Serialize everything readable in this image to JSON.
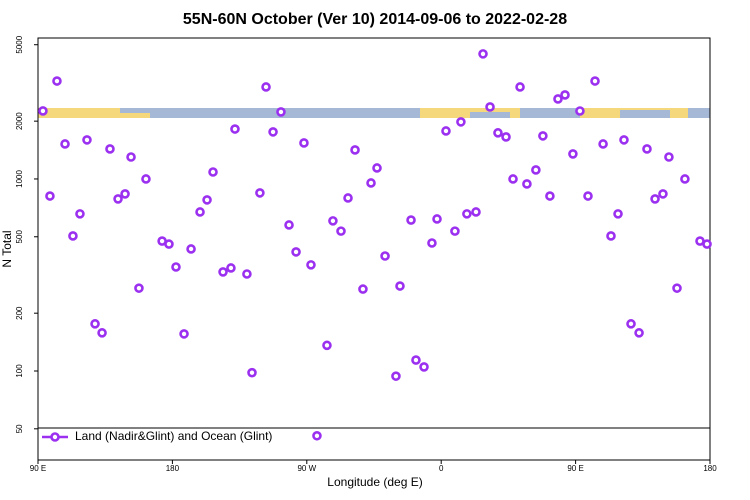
{
  "chart_data": {
    "type": "scatter",
    "title": "55N-60N October (Ver 10)   2014-09-06 to 2022-02-28",
    "xlabel": "Longitude (deg E)",
    "ylabel": "N Total",
    "log_y": true,
    "xlim": [
      90,
      540
    ],
    "ylim": [
      34.4,
      5420
    ],
    "xticks": [
      {
        "value": 90,
        "label": "90 E"
      },
      180,
      {
        "value": 270,
        "label": "90 W"
      },
      {
        "value": 360,
        "label": "0"
      },
      {
        "value": 450,
        "label": "90 E"
      },
      {
        "value": 540,
        "label": "180"
      }
    ],
    "yticks": [
      50,
      100,
      200,
      500,
      1000,
      2000,
      5000
    ],
    "legend": "lower left",
    "series": [
      {
        "name": "Land (Nadir&Glint) and Ocean (Glint)",
        "color": "#9b30f0",
        "x": [
          93.3,
          98.0,
          102.7,
          108.1,
          113.4,
          118.1,
          122.8,
          128.2,
          132.9,
          138.2,
          143.6,
          148.3,
          152.3,
          157.6,
          162.3,
          173.1,
          177.7,
          182.4,
          187.8,
          192.5,
          198.5,
          203.2,
          207.2,
          213.9,
          219.2,
          221.9,
          229.9,
          233.3,
          238.6,
          242.7,
          247.4,
          252.7,
          258.1,
          262.8,
          268.1,
          272.8,
          276.8,
          283.5,
          287.5,
          292.9,
          297.6,
          302.3,
          307.6,
          313.0,
          317.0,
          322.4,
          329.7,
          332.4,
          339.8,
          343.1,
          348.5,
          353.8,
          357.2,
          363.2,
          369.2,
          373.2,
          377.2,
          383.3,
          388.0,
          392.7,
          398.0,
          403.4,
          408.1,
          417.4,
          412.8,
          423.4,
          428.1,
          432.8,
          438.2,
          442.9,
          448.2,
          452.9,
          458.3,
          463.0,
          468.4,
          473.7,
          478.4,
          482.4,
          487.1,
          492.5,
          497.8,
          503.2,
          508.5,
          512.5,
          517.9,
          523.2,
          533.3,
          538.0
        ],
        "values": [
          2260,
          815,
          3236,
          1521,
          505,
          658,
          1597,
          176,
          158,
          1433,
          787,
          836,
          1301,
          270,
          1000,
          475,
          458,
          348,
          156,
          432,
          673,
          778,
          1087,
          328,
          344,
          1820,
          320,
          98,
          846,
          3013,
          1758,
          2234,
          576,
          417,
          1540,
          357,
          46,
          136,
          605,
          535,
          796,
          1416,
          267,
          953,
          1141,
          397,
          94,
          277,
          611,
          114,
          105,
          464,
          619,
          1778,
          535,
          1982,
          658,
          673,
          4480,
          2371,
          1738,
          1655,
          1000,
          942,
          3013,
          1114,
          1676,
          815,
          2610,
          2738,
          1350,
          2259,
          815,
          3236,
          1521,
          505,
          658,
          1597,
          176,
          158,
          1433,
          787,
          836,
          1301,
          270,
          1000,
          475,
          458
        ]
      }
    ]
  }
}
